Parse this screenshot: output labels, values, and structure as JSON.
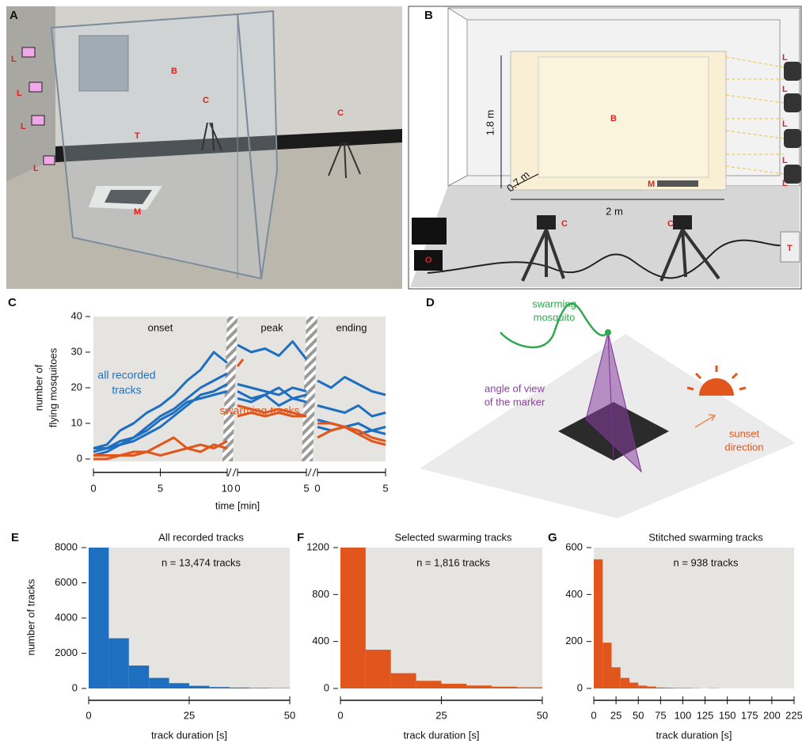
{
  "panel_a": {
    "letter": "A",
    "labels": [
      "L",
      "L",
      "L",
      "L",
      "B",
      "C",
      "C",
      "T",
      "M"
    ]
  },
  "panel_b": {
    "letter": "B",
    "labels": [
      "L",
      "L",
      "L",
      "L",
      "L",
      "B",
      "M",
      "C",
      "C",
      "T",
      "O"
    ],
    "height": "1.8 m",
    "depth": "0.7 m",
    "width": "2 m"
  },
  "panel_d": {
    "letter": "D",
    "mosquito": [
      "swarming",
      "mosquito"
    ],
    "angle": [
      "angle of view",
      "of the marker"
    ],
    "sunset": [
      "sunset",
      "direction"
    ]
  },
  "chart_data": [
    {
      "type": "line",
      "letter": "C",
      "ylabel": [
        "number of",
        "flying mosquitoes"
      ],
      "xlabel": "time [min]",
      "ylim": [
        0,
        40
      ],
      "yticks": [
        0,
        10,
        20,
        30,
        40
      ],
      "label_all": [
        "all recorded",
        "tracks"
      ],
      "label_swarming": "swarming tracks",
      "phases": [
        {
          "name": "onset",
          "xlim": [
            0,
            10
          ],
          "xticks": [
            0,
            5,
            10
          ],
          "series": [
            {
              "color": "#1f6fc0",
              "x": [
                0,
                1,
                2,
                3,
                4,
                5,
                6,
                7,
                8,
                9,
                10
              ],
              "values": [
                3,
                4,
                8,
                10,
                13,
                15,
                18,
                22,
                25,
                30,
                27
              ]
            },
            {
              "color": "#1f6fc0",
              "x": [
                0,
                1,
                2,
                3,
                4,
                5,
                6,
                7,
                8,
                9,
                10
              ],
              "values": [
                2,
                3,
                5,
                6,
                9,
                12,
                14,
                17,
                20,
                22,
                24
              ]
            },
            {
              "color": "#1f6fc0",
              "x": [
                0,
                1,
                2,
                3,
                4,
                5,
                6,
                7,
                8,
                9,
                10
              ],
              "values": [
                1,
                2,
                4,
                5,
                7,
                9,
                12,
                15,
                18,
                19,
                21
              ]
            },
            {
              "color": "#1f6fc0",
              "x": [
                0,
                1,
                2,
                3,
                4,
                5,
                6,
                7,
                8,
                9,
                10
              ],
              "values": [
                3,
                3,
                4,
                6,
                8,
                11,
                13,
                16,
                17,
                18,
                19
              ]
            },
            {
              "color": "#e0561c",
              "x": [
                0,
                1,
                2,
                3,
                4,
                5,
                6,
                7,
                8,
                9,
                10
              ],
              "values": [
                0,
                0,
                1,
                1,
                2,
                1,
                2,
                3,
                4,
                3,
                5
              ]
            },
            {
              "color": "#e0561c",
              "x": [
                0,
                1,
                2,
                3,
                4,
                5,
                6,
                7,
                8,
                9,
                10
              ],
              "values": [
                1,
                1,
                1,
                2,
                2,
                4,
                6,
                3,
                2,
                4,
                3
              ]
            }
          ]
        },
        {
          "name": "peak",
          "xlim": [
            0,
            5
          ],
          "xticks": [
            0,
            5
          ],
          "series": [
            {
              "color": "#1f6fc0",
              "x": [
                0,
                1,
                2,
                3,
                4,
                5
              ],
              "values": [
                32,
                30,
                31,
                29,
                33,
                28
              ]
            },
            {
              "color": "#1f6fc0",
              "x": [
                0,
                1,
                2,
                3,
                4,
                5
              ],
              "values": [
                21,
                20,
                19,
                18,
                20,
                19
              ]
            },
            {
              "color": "#1f6fc0",
              "x": [
                0,
                1,
                2,
                3,
                4,
                5
              ],
              "values": [
                19,
                17,
                18,
                20,
                17,
                18
              ]
            },
            {
              "color": "#1f6fc0",
              "x": [
                0,
                1,
                2,
                3,
                4,
                5
              ],
              "values": [
                17,
                16,
                18,
                15,
                17,
                16
              ]
            },
            {
              "color": "#e0561c",
              "x": [
                0,
                1,
                2,
                3,
                4,
                5
              ],
              "values": [
                15,
                14,
                13,
                14,
                13,
                12
              ]
            },
            {
              "color": "#e0561c",
              "x": [
                0,
                1,
                2,
                3,
                4,
                5
              ],
              "values": [
                12,
                13,
                12,
                13,
                12,
                12
              ]
            },
            {
              "color": "#e0561c",
              "x": [
                0,
                0.4
              ],
              "values": [
                26,
                28
              ]
            }
          ]
        },
        {
          "name": "ending",
          "xlim": [
            0,
            5
          ],
          "xticks": [
            0,
            5
          ],
          "series": [
            {
              "color": "#1f6fc0",
              "x": [
                0,
                1,
                2,
                3,
                4,
                5
              ],
              "values": [
                22,
                20,
                23,
                21,
                19,
                18
              ]
            },
            {
              "color": "#1f6fc0",
              "x": [
                0,
                1,
                2,
                3,
                4,
                5
              ],
              "values": [
                15,
                14,
                13,
                15,
                12,
                13
              ]
            },
            {
              "color": "#1f6fc0",
              "x": [
                0,
                1,
                2,
                3,
                4,
                5
              ],
              "values": [
                11,
                10,
                9,
                10,
                8,
                9
              ]
            },
            {
              "color": "#1f6fc0",
              "x": [
                0,
                1,
                2,
                3,
                4,
                5
              ],
              "values": [
                9,
                8,
                9,
                7,
                8,
                7
              ]
            },
            {
              "color": "#e0561c",
              "x": [
                0,
                1,
                2,
                3,
                4,
                5
              ],
              "values": [
                6,
                8,
                9,
                7,
                5,
                4
              ]
            },
            {
              "color": "#e0561c",
              "x": [
                0,
                1,
                2,
                3,
                4,
                5
              ],
              "values": [
                10,
                10,
                9,
                8,
                6,
                5
              ]
            }
          ]
        }
      ]
    },
    {
      "type": "histogram",
      "letter": "E",
      "title": "All recorded tracks",
      "annotation": "n = 13,474 tracks",
      "xlabel": "track duration [s]",
      "ylabel": "number of tracks",
      "color": "#1f6fc0",
      "bins": [
        0,
        5,
        10,
        15,
        20,
        25,
        30,
        35,
        40,
        45,
        50
      ],
      "counts": [
        8000,
        2850,
        1300,
        600,
        300,
        150,
        80,
        50,
        30,
        20
      ],
      "xlim": [
        0,
        50
      ],
      "xticks": [
        0,
        25,
        50
      ],
      "ylim": [
        0,
        8000
      ],
      "yticks": [
        0,
        2000,
        4000,
        6000,
        8000
      ]
    },
    {
      "type": "histogram",
      "letter": "F",
      "title": "Selected swarming tracks",
      "annotation": "n = 1,816 tracks",
      "xlabel": "track duration [s]",
      "color": "#e0561c",
      "bins": [
        0,
        6.25,
        12.5,
        18.75,
        25,
        31.25,
        37.5,
        43.75,
        50
      ],
      "counts": [
        1200,
        330,
        130,
        65,
        40,
        25,
        15,
        10
      ],
      "xlim": [
        0,
        50
      ],
      "xticks": [
        0,
        25,
        50
      ],
      "ylim": [
        0,
        1200
      ],
      "yticks": [
        0,
        400,
        800,
        1200
      ]
    },
    {
      "type": "histogram",
      "letter": "G",
      "title": "Stitched swarming tracks",
      "annotation": "n = 938 tracks",
      "xlabel": "track duration [s]",
      "color": "#e0561c",
      "bins": [
        0,
        10,
        20,
        30,
        40,
        50,
        60,
        70,
        80,
        90,
        100,
        110,
        120,
        130,
        140
      ],
      "counts": [
        550,
        195,
        90,
        45,
        25,
        12,
        8,
        4,
        3,
        2,
        2,
        1,
        0,
        1
      ],
      "xlim": [
        0,
        225
      ],
      "xticks": [
        0,
        25,
        50,
        75,
        100,
        125,
        150,
        175,
        200,
        225
      ],
      "ylim": [
        0,
        600
      ],
      "yticks": [
        0,
        200,
        400,
        600
      ]
    }
  ]
}
